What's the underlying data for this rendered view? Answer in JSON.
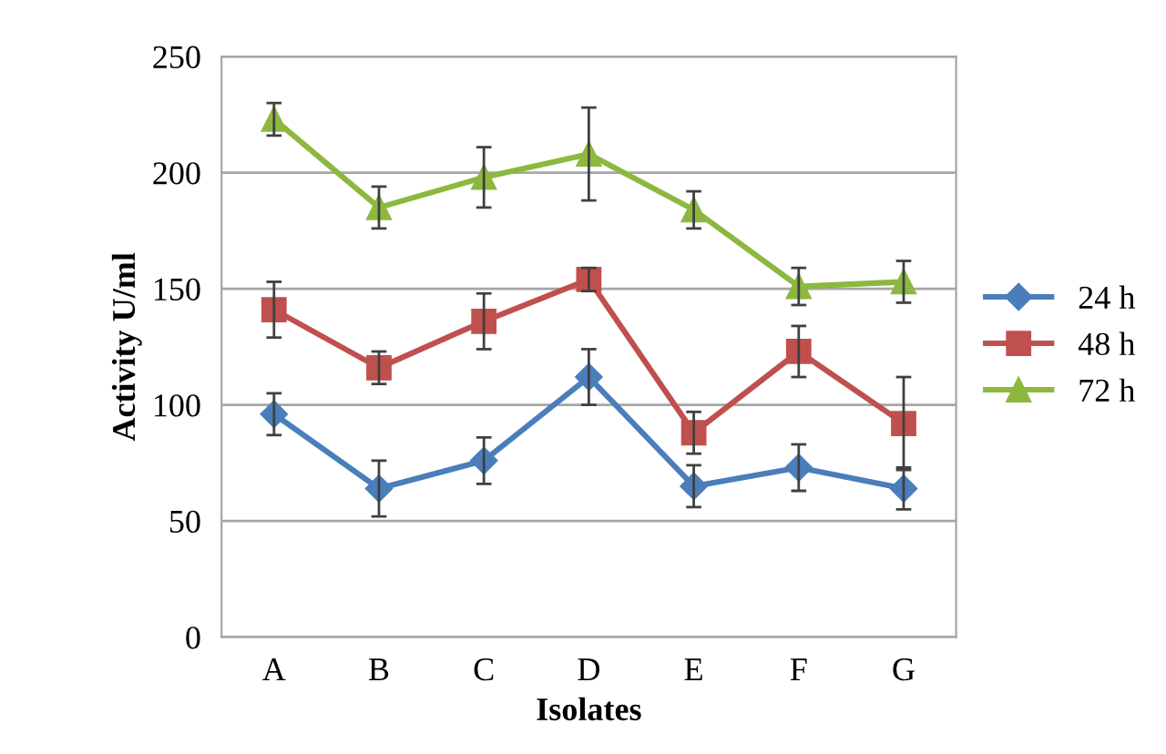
{
  "chart_data": {
    "type": "line",
    "xlabel": "Isolates",
    "ylabel": "Activity U/ml",
    "categories": [
      "A",
      "B",
      "C",
      "D",
      "E",
      "F",
      "G"
    ],
    "series": [
      {
        "name": "24 h",
        "color": "#4a7ebb",
        "marker": "diamond",
        "values": [
          96,
          64,
          76,
          112,
          65,
          73,
          64
        ],
        "errors": [
          9,
          12,
          10,
          12,
          9,
          10,
          9
        ]
      },
      {
        "name": "48 h",
        "color": "#c0504d",
        "marker": "square",
        "values": [
          141,
          116,
          136,
          154,
          88,
          123,
          92
        ],
        "errors": [
          12,
          7,
          12,
          5,
          9,
          11,
          20
        ]
      },
      {
        "name": "72 h",
        "color": "#8db83f",
        "marker": "triangle",
        "values": [
          223,
          185,
          198,
          208,
          184,
          151,
          153
        ],
        "errors": [
          7,
          9,
          13,
          20,
          8,
          8,
          9
        ]
      }
    ],
    "ylim": [
      0,
      250
    ],
    "yticks": [
      0,
      50,
      100,
      150,
      200,
      250
    ],
    "grid": "y",
    "legend": "right",
    "line_style": "solid"
  }
}
